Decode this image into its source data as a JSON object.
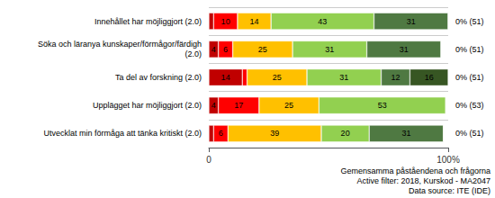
{
  "chart_data": {
    "type": "bar",
    "orientation": "horizontal",
    "stacked": true,
    "data_labels": true,
    "grid": true,
    "categories": [
      "Innehållet har möjliggjort (2.0)",
      "Söka och läranya kunskaper/förmågor/färdigh\n(2.0)",
      "Ta del av forskning (2.0)",
      "Upplägget har möjliggjort (2.0)",
      "Utvecklat min förmåga att tänka kritiskt (2.0)"
    ],
    "series": [
      {
        "color": "#c00000",
        "values": [
          2,
          4,
          14,
          4,
          2
        ],
        "value_labels": [
          null,
          "4",
          "14",
          "4",
          null
        ]
      },
      {
        "color": "#ff0000",
        "values": [
          10,
          6,
          2,
          17,
          6
        ],
        "value_labels": [
          "10",
          "6",
          null,
          "17",
          "6"
        ]
      },
      {
        "color": "#ffc000",
        "values": [
          14,
          25,
          25,
          25,
          39
        ],
        "value_labels": [
          "14",
          "25",
          "25",
          "25",
          "39"
        ]
      },
      {
        "color": "#92d050",
        "values": [
          43,
          31,
          31,
          53,
          20
        ],
        "value_labels": [
          "43",
          "31",
          "31",
          "53",
          "20"
        ]
      },
      {
        "color": "#4f7942",
        "values": [
          31,
          31,
          12,
          0,
          31
        ],
        "value_labels": [
          "31",
          "31",
          "12",
          null,
          "31"
        ]
      },
      {
        "color": "#375623",
        "values": [
          0,
          0,
          16,
          0,
          0
        ],
        "value_labels": [
          null,
          null,
          "16",
          null,
          null
        ]
      }
    ],
    "xlim": [
      0,
      100
    ],
    "xticks": [
      0,
      {
        "value": 100,
        "label": "100%"
      }
    ],
    "annotations": [
      "0% (51)",
      "0% (51)",
      "0% (51)",
      "0% (53)",
      "0% (51)"
    ],
    "footnote": [
      "Gemensamma påståendena och frågorna",
      "Active filter: 2018, Kurskod - MA2047",
      "Data source: ITE (IDE)"
    ]
  }
}
